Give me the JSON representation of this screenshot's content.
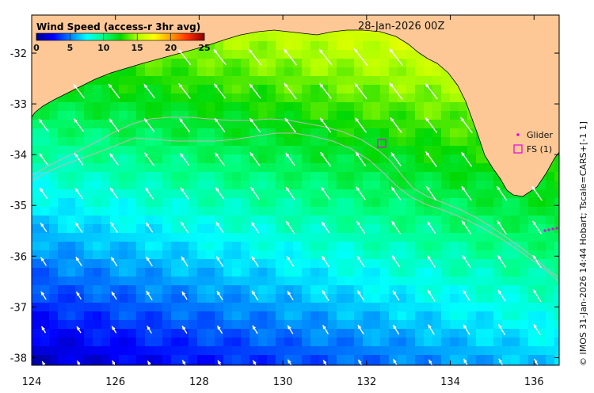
{
  "map": {
    "date": "28-Jan-2026 00Z",
    "colorbar": {
      "title": "Wind Speed (access-r 3hr avg)",
      "ticks": [
        "0",
        "5",
        "10",
        "15",
        "20",
        "25"
      ],
      "range": [
        0,
        25
      ],
      "colors": [
        "#00008f",
        "#0000ff",
        "#007fff",
        "#00ffff",
        "#00ff80",
        "#00d800",
        "#b0ff00",
        "#ffff00",
        "#ff9f00",
        "#ff3000",
        "#8b0000"
      ]
    },
    "x_axis": {
      "ticks": [
        "124",
        "126",
        "128",
        "130",
        "132",
        "134",
        "136"
      ],
      "range_deg_e": [
        124,
        136.6
      ]
    },
    "y_axis": {
      "ticks": [
        "-32",
        "-33",
        "-34",
        "-35",
        "-36",
        "-37",
        "-38"
      ],
      "range_deg": [
        -31.25,
        -38.15
      ]
    },
    "legend": {
      "glider_label": "Glider",
      "fs_label": "FS (1)"
    },
    "credit": "© IMOS 31-Jan-2026 14:44 Hobart; Tscale=CARS+[-1 1]",
    "colors": {
      "land": "#fdc895",
      "contour": "#b8b8b8",
      "marker": "#e600e6",
      "arrow": "#ffffff"
    },
    "wind_direction": "north-westward (toward upper left)"
  }
}
